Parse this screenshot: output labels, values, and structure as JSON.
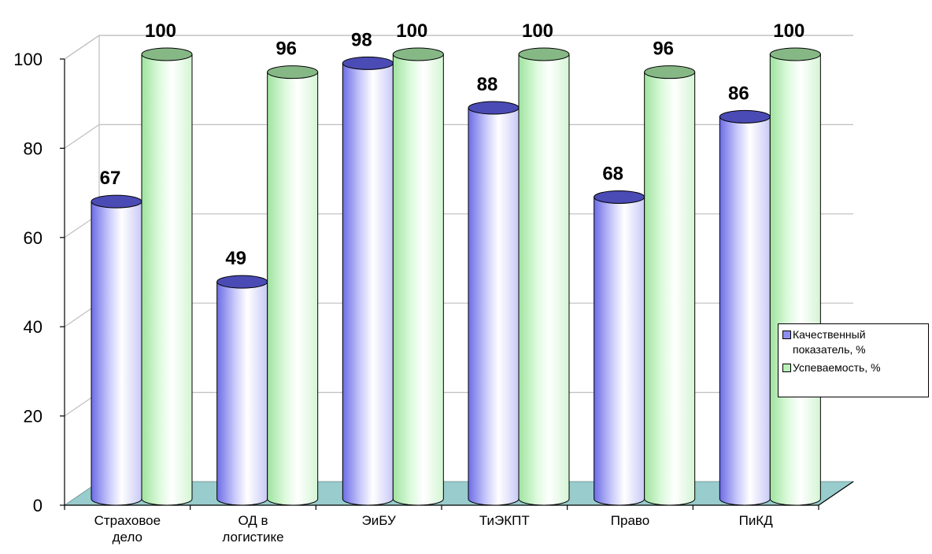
{
  "chart_data": {
    "type": "bar",
    "style": "3d-cylinder",
    "categories": [
      [
        "Страховое",
        "дело"
      ],
      [
        "ОД в",
        "логистике"
      ],
      [
        "ЭиБУ"
      ],
      [
        "ТиЭКПТ"
      ],
      [
        "Право"
      ],
      [
        "ПиКД"
      ]
    ],
    "series": [
      {
        "name": "Качественный показатель,  %",
        "color": "#8e8ef0",
        "values": [
          67,
          49,
          98,
          88,
          68,
          86
        ]
      },
      {
        "name": "Успеваемость,  %",
        "color": "#b8f0b8",
        "values": [
          100,
          96,
          100,
          100,
          96,
          100
        ]
      }
    ],
    "yticks": [
      0,
      20,
      40,
      60,
      80,
      100
    ],
    "ylim": [
      0,
      100
    ],
    "grid": true,
    "data_labels": true,
    "legend_position": "right",
    "floor_color": "#99cccc"
  },
  "legend": {
    "items": [
      {
        "label": "Качественный показатель,  %",
        "color": "#8e8ef0"
      },
      {
        "label": "Успеваемость,  %",
        "color": "#b8f0b8"
      }
    ]
  }
}
